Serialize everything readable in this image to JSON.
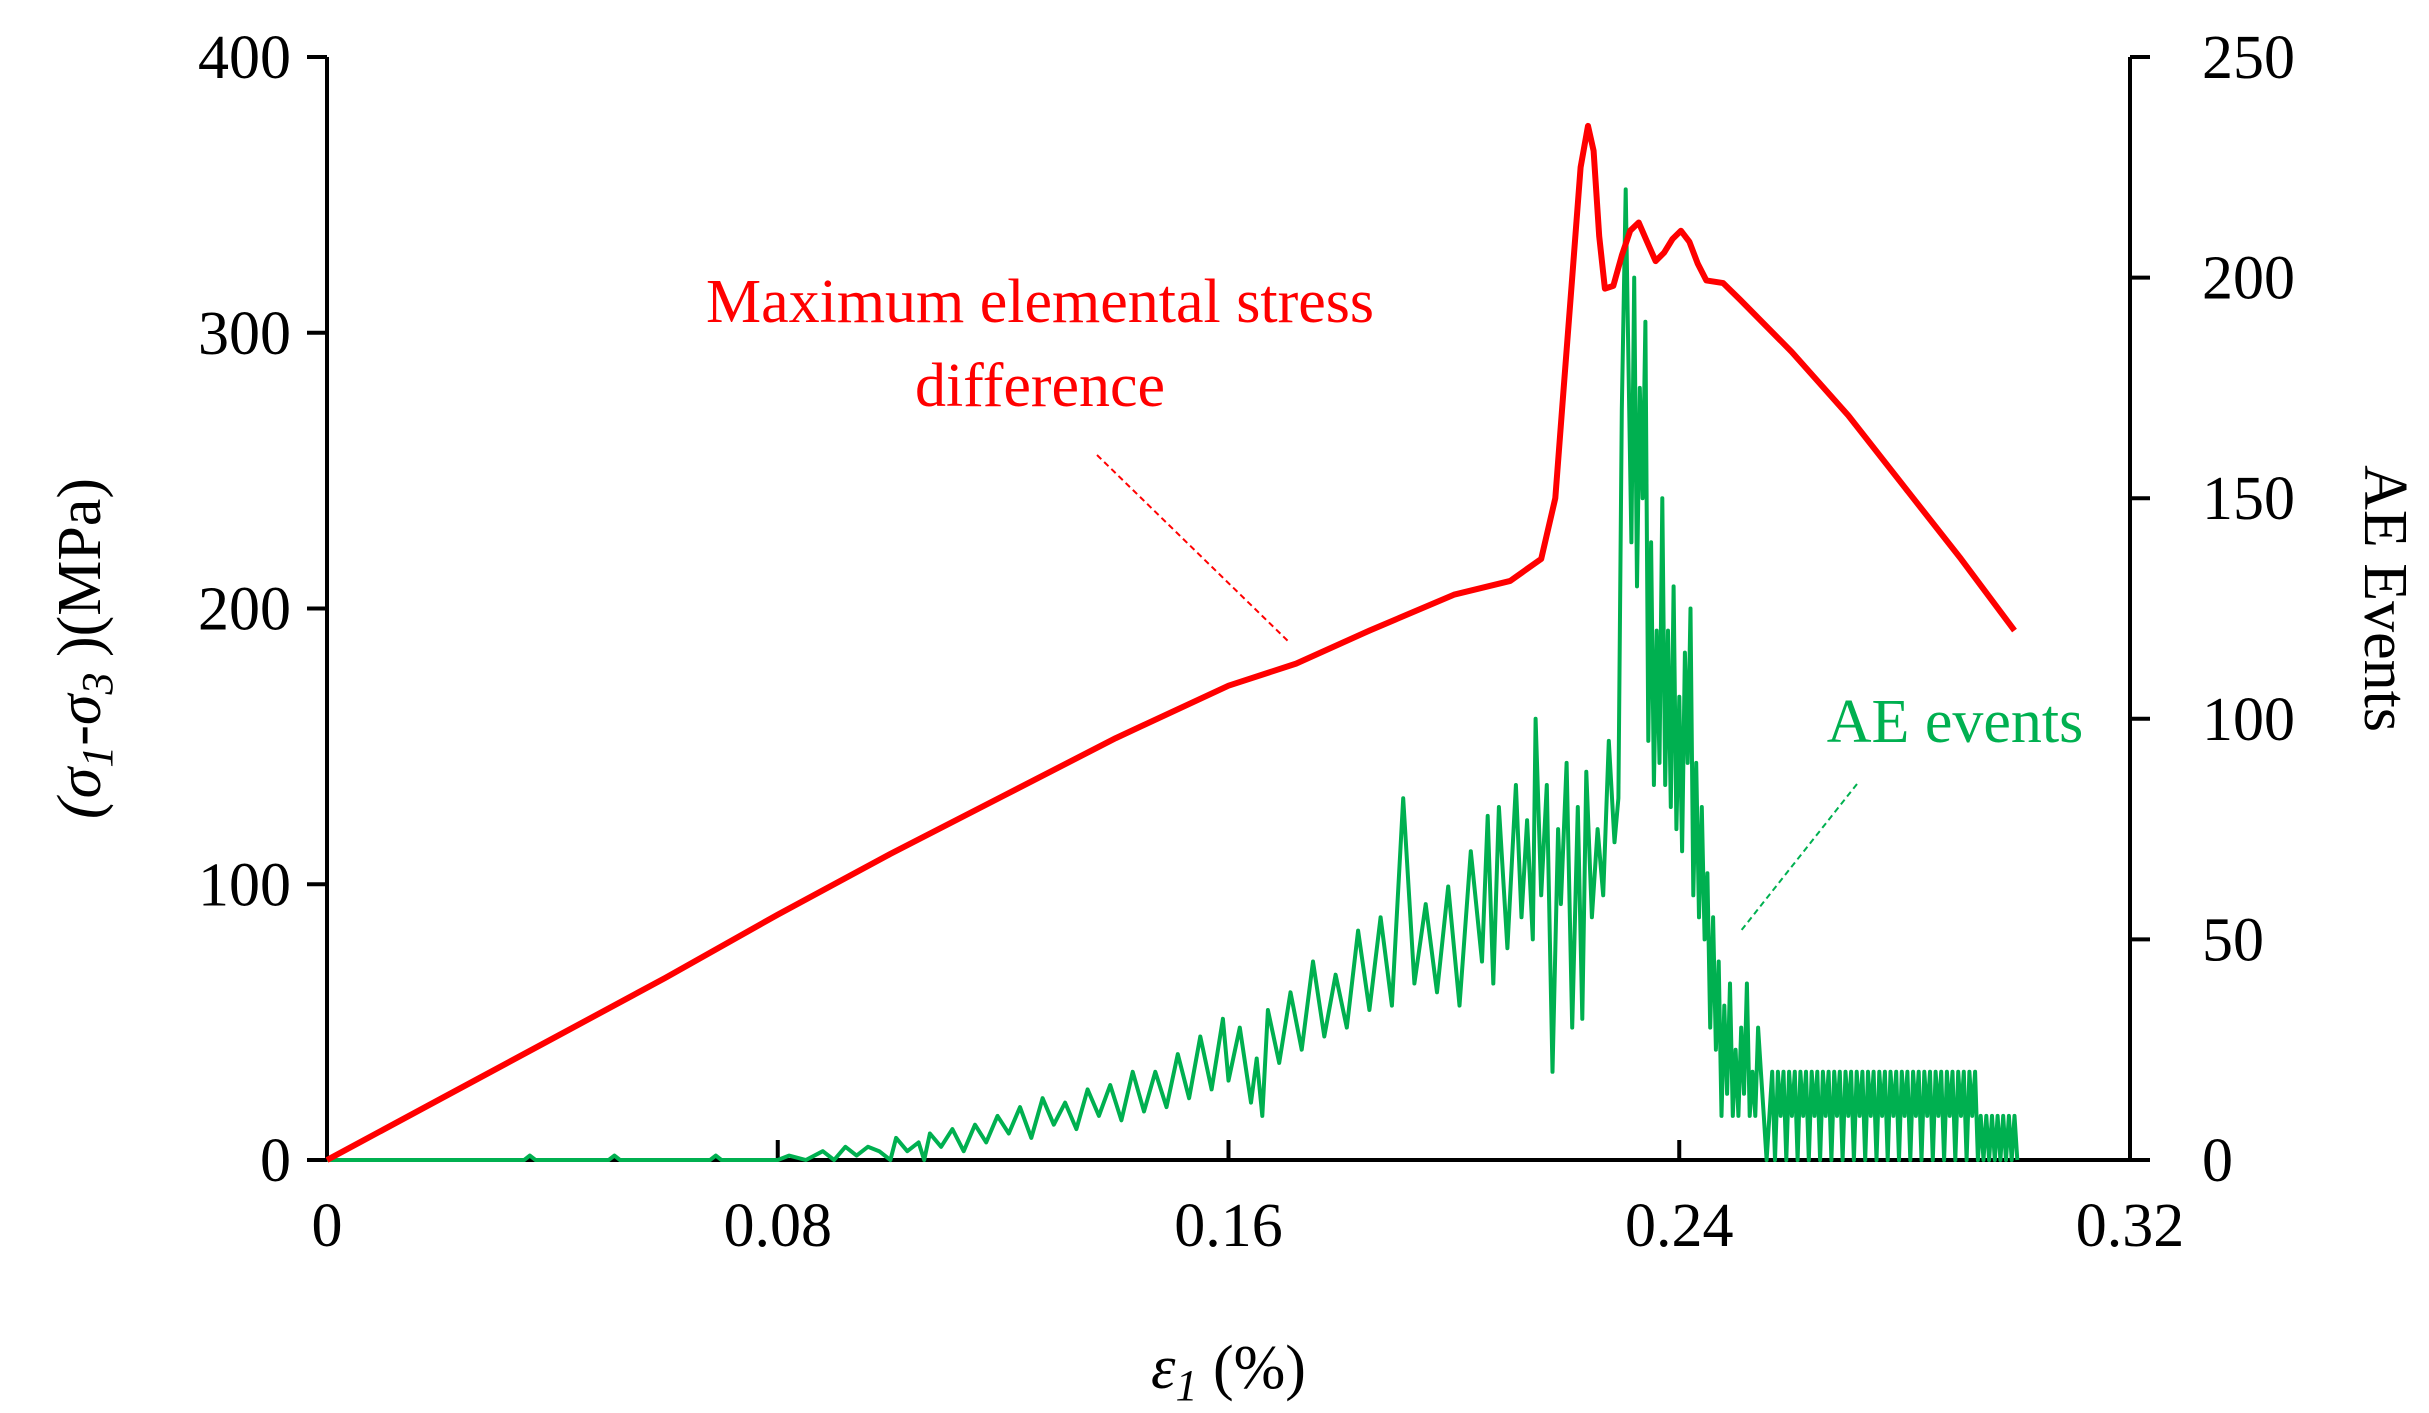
{
  "chart_data": {
    "type": "line",
    "x": {
      "label_symbol": "ε",
      "label_subscript": "1",
      "label_unit": " (%)",
      "range": [
        0,
        0.32
      ],
      "ticks": [
        0,
        0.08,
        0.16,
        0.24,
        0.32
      ],
      "tick_labels": [
        "0",
        "0.08",
        "0.16",
        "0.24",
        "0.32"
      ]
    },
    "y_left": {
      "label_parts": [
        "(σ",
        "1",
        "-σ",
        "3",
        " )(MPa)"
      ],
      "range": [
        0,
        400
      ],
      "ticks": [
        0,
        100,
        200,
        300,
        400
      ],
      "tick_labels": [
        "0",
        "100",
        "200",
        "300",
        "400"
      ]
    },
    "y_right": {
      "label": "AE Events",
      "range": [
        0,
        250
      ],
      "ticks": [
        0,
        50,
        100,
        150,
        200,
        250
      ],
      "tick_labels": [
        "0",
        "50",
        "100",
        "150",
        "200",
        "250"
      ]
    },
    "series": [
      {
        "name": "Maximum elemental stress difference",
        "axis": "left",
        "color": "#ff0000",
        "points": [
          [
            0,
            0
          ],
          [
            0.02,
            22
          ],
          [
            0.04,
            44
          ],
          [
            0.06,
            66
          ],
          [
            0.08,
            89
          ],
          [
            0.1,
            111
          ],
          [
            0.12,
            132
          ],
          [
            0.14,
            153
          ],
          [
            0.16,
            172
          ],
          [
            0.172,
            180
          ],
          [
            0.185,
            192
          ],
          [
            0.2,
            205
          ],
          [
            0.21,
            210
          ],
          [
            0.2155,
            218
          ],
          [
            0.218,
            240
          ],
          [
            0.2195,
            280
          ],
          [
            0.221,
            320
          ],
          [
            0.2225,
            360
          ],
          [
            0.2238,
            375
          ],
          [
            0.2248,
            366
          ],
          [
            0.2258,
            335
          ],
          [
            0.2268,
            316
          ],
          [
            0.2283,
            317
          ],
          [
            0.2298,
            328
          ],
          [
            0.2313,
            337
          ],
          [
            0.2328,
            340
          ],
          [
            0.2343,
            333
          ],
          [
            0.2358,
            326
          ],
          [
            0.2373,
            329
          ],
          [
            0.2388,
            334
          ],
          [
            0.2403,
            337
          ],
          [
            0.2418,
            333
          ],
          [
            0.2433,
            325
          ],
          [
            0.2448,
            319
          ],
          [
            0.2478,
            318
          ],
          [
            0.2508,
            312
          ],
          [
            0.26,
            293
          ],
          [
            0.27,
            270
          ],
          [
            0.28,
            244
          ],
          [
            0.29,
            218
          ],
          [
            0.2995,
            192
          ]
        ]
      },
      {
        "name": "AE events",
        "axis": "right",
        "color": "#00b050",
        "points": [
          [
            0,
            0
          ],
          [
            0.035,
            0
          ],
          [
            0.036,
            1
          ],
          [
            0.037,
            0
          ],
          [
            0.05,
            0
          ],
          [
            0.051,
            1
          ],
          [
            0.052,
            0
          ],
          [
            0.068,
            0
          ],
          [
            0.069,
            1
          ],
          [
            0.07,
            0
          ],
          [
            0.08,
            0
          ],
          [
            0.082,
            1
          ],
          [
            0.085,
            0
          ],
          [
            0.088,
            2
          ],
          [
            0.09,
            0
          ],
          [
            0.092,
            3
          ],
          [
            0.094,
            1
          ],
          [
            0.096,
            3
          ],
          [
            0.098,
            2
          ],
          [
            0.1,
            0
          ],
          [
            0.101,
            5
          ],
          [
            0.103,
            2
          ],
          [
            0.105,
            4
          ],
          [
            0.106,
            0
          ],
          [
            0.107,
            6
          ],
          [
            0.109,
            3
          ],
          [
            0.111,
            7
          ],
          [
            0.113,
            2
          ],
          [
            0.115,
            8
          ],
          [
            0.117,
            4
          ],
          [
            0.119,
            10
          ],
          [
            0.121,
            6
          ],
          [
            0.123,
            12
          ],
          [
            0.125,
            5
          ],
          [
            0.127,
            14
          ],
          [
            0.129,
            8
          ],
          [
            0.131,
            13
          ],
          [
            0.133,
            7
          ],
          [
            0.135,
            16
          ],
          [
            0.137,
            10
          ],
          [
            0.139,
            17
          ],
          [
            0.141,
            9
          ],
          [
            0.143,
            20
          ],
          [
            0.145,
            11
          ],
          [
            0.147,
            20
          ],
          [
            0.149,
            12
          ],
          [
            0.151,
            24
          ],
          [
            0.153,
            14
          ],
          [
            0.155,
            28
          ],
          [
            0.157,
            16
          ],
          [
            0.159,
            32
          ],
          [
            0.16,
            18
          ],
          [
            0.162,
            30
          ],
          [
            0.164,
            13
          ],
          [
            0.165,
            23
          ],
          [
            0.166,
            10
          ],
          [
            0.167,
            34
          ],
          [
            0.169,
            22
          ],
          [
            0.171,
            38
          ],
          [
            0.173,
            25
          ],
          [
            0.175,
            45
          ],
          [
            0.177,
            28
          ],
          [
            0.179,
            42
          ],
          [
            0.181,
            30
          ],
          [
            0.183,
            52
          ],
          [
            0.185,
            34
          ],
          [
            0.187,
            55
          ],
          [
            0.189,
            35
          ],
          [
            0.191,
            82
          ],
          [
            0.193,
            40
          ],
          [
            0.195,
            58
          ],
          [
            0.197,
            38
          ],
          [
            0.199,
            62
          ],
          [
            0.201,
            35
          ],
          [
            0.203,
            70
          ],
          [
            0.205,
            45
          ],
          [
            0.206,
            78
          ],
          [
            0.207,
            40
          ],
          [
            0.208,
            80
          ],
          [
            0.2095,
            48
          ],
          [
            0.211,
            85
          ],
          [
            0.212,
            55
          ],
          [
            0.213,
            77
          ],
          [
            0.214,
            50
          ],
          [
            0.2145,
            100
          ],
          [
            0.2155,
            60
          ],
          [
            0.2165,
            85
          ],
          [
            0.2175,
            20
          ],
          [
            0.2185,
            75
          ],
          [
            0.219,
            58
          ],
          [
            0.22,
            90
          ],
          [
            0.221,
            30
          ],
          [
            0.222,
            80
          ],
          [
            0.2228,
            32
          ],
          [
            0.2235,
            88
          ],
          [
            0.2245,
            55
          ],
          [
            0.2255,
            75
          ],
          [
            0.2265,
            60
          ],
          [
            0.2275,
            95
          ],
          [
            0.2285,
            72
          ],
          [
            0.2292,
            82
          ],
          [
            0.2298,
            170
          ],
          [
            0.2305,
            220
          ],
          [
            0.231,
            180
          ],
          [
            0.2315,
            140
          ],
          [
            0.232,
            200
          ],
          [
            0.2325,
            130
          ],
          [
            0.233,
            175
          ],
          [
            0.2335,
            150
          ],
          [
            0.234,
            190
          ],
          [
            0.2345,
            95
          ],
          [
            0.235,
            140
          ],
          [
            0.2355,
            85
          ],
          [
            0.236,
            120
          ],
          [
            0.2365,
            90
          ],
          [
            0.237,
            150
          ],
          [
            0.2375,
            85
          ],
          [
            0.238,
            120
          ],
          [
            0.2385,
            80
          ],
          [
            0.239,
            130
          ],
          [
            0.2395,
            75
          ],
          [
            0.24,
            105
          ],
          [
            0.2405,
            70
          ],
          [
            0.241,
            115
          ],
          [
            0.2415,
            90
          ],
          [
            0.242,
            125
          ],
          [
            0.2425,
            60
          ],
          [
            0.243,
            90
          ],
          [
            0.2435,
            55
          ],
          [
            0.244,
            80
          ],
          [
            0.2445,
            50
          ],
          [
            0.245,
            65
          ],
          [
            0.2455,
            30
          ],
          [
            0.246,
            55
          ],
          [
            0.2465,
            25
          ],
          [
            0.247,
            45
          ],
          [
            0.2475,
            10
          ],
          [
            0.248,
            35
          ],
          [
            0.2485,
            15
          ],
          [
            0.249,
            40
          ],
          [
            0.2495,
            10
          ],
          [
            0.25,
            25
          ],
          [
            0.2505,
            10
          ],
          [
            0.251,
            30
          ],
          [
            0.2515,
            15
          ],
          [
            0.252,
            40
          ],
          [
            0.2525,
            10
          ],
          [
            0.253,
            20
          ],
          [
            0.2535,
            10
          ],
          [
            0.254,
            30
          ],
          [
            0.2545,
            20
          ],
          [
            0.255,
            10
          ],
          [
            0.2555,
            0
          ],
          [
            0.256,
            10
          ],
          [
            0.2565,
            20
          ],
          [
            0.257,
            0
          ],
          [
            0.2575,
            20
          ],
          [
            0.258,
            10
          ],
          [
            0.2585,
            20
          ],
          [
            0.259,
            0
          ],
          [
            0.2595,
            20
          ],
          [
            0.26,
            10
          ],
          [
            0.2605,
            20
          ],
          [
            0.261,
            0
          ],
          [
            0.2615,
            20
          ],
          [
            0.262,
            10
          ],
          [
            0.2625,
            20
          ],
          [
            0.263,
            0
          ],
          [
            0.2635,
            20
          ],
          [
            0.264,
            10
          ],
          [
            0.2645,
            20
          ],
          [
            0.265,
            0
          ],
          [
            0.2655,
            20
          ],
          [
            0.266,
            10
          ],
          [
            0.2665,
            20
          ],
          [
            0.267,
            0
          ],
          [
            0.2675,
            20
          ],
          [
            0.268,
            10
          ],
          [
            0.2685,
            20
          ],
          [
            0.269,
            0
          ],
          [
            0.2695,
            20
          ],
          [
            0.27,
            10
          ],
          [
            0.2705,
            20
          ],
          [
            0.271,
            0
          ],
          [
            0.2715,
            20
          ],
          [
            0.272,
            10
          ],
          [
            0.2725,
            20
          ],
          [
            0.273,
            0
          ],
          [
            0.2735,
            20
          ],
          [
            0.274,
            10
          ],
          [
            0.2745,
            20
          ],
          [
            0.275,
            0
          ],
          [
            0.2755,
            20
          ],
          [
            0.276,
            10
          ],
          [
            0.2765,
            20
          ],
          [
            0.277,
            0
          ],
          [
            0.2775,
            20
          ],
          [
            0.278,
            10
          ],
          [
            0.2785,
            20
          ],
          [
            0.279,
            0
          ],
          [
            0.2795,
            20
          ],
          [
            0.28,
            10
          ],
          [
            0.2805,
            20
          ],
          [
            0.281,
            0
          ],
          [
            0.2815,
            20
          ],
          [
            0.282,
            10
          ],
          [
            0.2825,
            20
          ],
          [
            0.283,
            0
          ],
          [
            0.2835,
            20
          ],
          [
            0.284,
            10
          ],
          [
            0.2845,
            20
          ],
          [
            0.285,
            0
          ],
          [
            0.2855,
            20
          ],
          [
            0.286,
            10
          ],
          [
            0.2865,
            20
          ],
          [
            0.287,
            0
          ],
          [
            0.2875,
            20
          ],
          [
            0.288,
            10
          ],
          [
            0.2885,
            20
          ],
          [
            0.289,
            0
          ],
          [
            0.2895,
            20
          ],
          [
            0.29,
            10
          ],
          [
            0.2905,
            20
          ],
          [
            0.291,
            0
          ],
          [
            0.2915,
            20
          ],
          [
            0.292,
            10
          ],
          [
            0.2925,
            20
          ],
          [
            0.293,
            0
          ],
          [
            0.2935,
            10
          ],
          [
            0.294,
            0
          ],
          [
            0.2945,
            10
          ],
          [
            0.295,
            0
          ],
          [
            0.2955,
            10
          ],
          [
            0.296,
            0
          ],
          [
            0.2965,
            10
          ],
          [
            0.297,
            0
          ],
          [
            0.2975,
            10
          ],
          [
            0.298,
            0
          ],
          [
            0.2985,
            10
          ],
          [
            0.299,
            0
          ],
          [
            0.2995,
            10
          ],
          [
            0.3,
            0
          ]
        ]
      }
    ],
    "annotations": [
      {
        "text_lines": [
          "Maximum elemental stress",
          "difference"
        ],
        "color": "#ff0000",
        "series": "Maximum elemental stress difference"
      },
      {
        "text_lines": [
          "AE events"
        ],
        "color": "#00b050",
        "series": "AE events"
      }
    ]
  }
}
